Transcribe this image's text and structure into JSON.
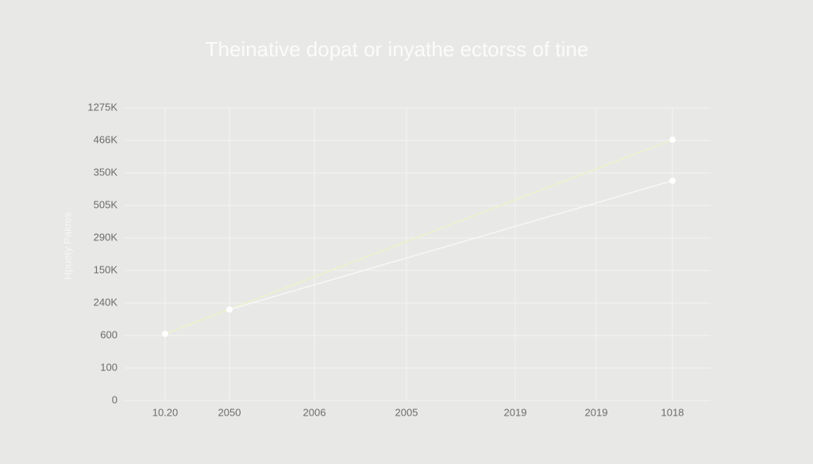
{
  "chart_data": {
    "type": "line",
    "title": "Theinative dopat or inyathe ectorss of tine",
    "y_label": "Hpuety Pakres",
    "categories": [
      "10.20",
      "2050",
      "2006",
      "2005",
      "2019",
      "2019",
      "1018"
    ],
    "y_categories": [
      "0",
      "100",
      "600",
      "240K",
      "150K",
      "290K",
      "505K",
      "350K",
      "466K",
      "1275K"
    ],
    "grid": true,
    "series": [
      {
        "color": "#eef2c8",
        "x": [
          0,
          6
        ],
        "values": [
          2.05,
          8.02
        ]
      },
      {
        "color": "#f7f7f7",
        "x": [
          1,
          6
        ],
        "values": [
          2.8,
          6.76
        ]
      }
    ]
  }
}
